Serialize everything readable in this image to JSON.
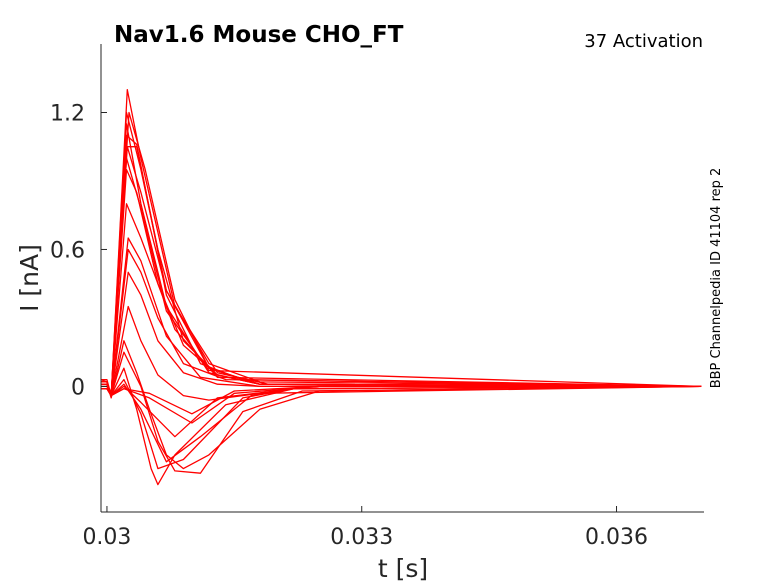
{
  "chart_data": {
    "type": "line",
    "title": "Nav1.6  Mouse  CHO_FT",
    "subtitle": "37  Activation",
    "side_note": "BBP Channelpedia ID 41104 rep 2",
    "xlabel": "t [s]",
    "ylabel": "I [nA]",
    "xlim": [
      0.02993,
      0.03703
    ],
    "ylim": [
      -0.55,
      1.5
    ],
    "x_ticks": [
      0.03,
      0.033,
      0.036
    ],
    "x_tick_labels": [
      "0.03",
      "0.033",
      "0.036"
    ],
    "y_ticks": [
      0,
      0.6,
      1.2
    ],
    "y_tick_labels": [
      "0",
      "0.6",
      "1.2"
    ],
    "grid": false,
    "line_color": "#ff0000",
    "series": [
      {
        "values": [
          [
            0.02993,
            -0.01
          ],
          [
            0.03,
            -0.01
          ],
          [
            0.03005,
            -0.04
          ],
          [
            0.0302,
            -0.01
          ],
          [
            0.0305,
            -0.03
          ],
          [
            0.031,
            -0.12
          ],
          [
            0.0315,
            -0.02
          ],
          [
            0.0325,
            0.0
          ],
          [
            0.037,
            0.0
          ]
        ]
      },
      {
        "values": [
          [
            0.02993,
            -0.01
          ],
          [
            0.03,
            -0.01
          ],
          [
            0.03005,
            -0.04
          ],
          [
            0.0302,
            -0.01
          ],
          [
            0.0305,
            -0.05
          ],
          [
            0.031,
            -0.16
          ],
          [
            0.0315,
            -0.03
          ],
          [
            0.0325,
            0.0
          ],
          [
            0.037,
            0.0
          ]
        ]
      },
      {
        "values": [
          [
            0.02993,
            -0.01
          ],
          [
            0.03,
            -0.01
          ],
          [
            0.03005,
            -0.04
          ],
          [
            0.0302,
            0.0
          ],
          [
            0.0304,
            -0.07
          ],
          [
            0.0308,
            -0.22
          ],
          [
            0.0313,
            -0.05
          ],
          [
            0.0322,
            -0.01
          ],
          [
            0.0325,
            0.0
          ],
          [
            0.037,
            0.0
          ]
        ]
      },
      {
        "values": [
          [
            0.02993,
            -0.01
          ],
          [
            0.03,
            -0.01
          ],
          [
            0.03005,
            -0.04
          ],
          [
            0.0302,
            0.01
          ],
          [
            0.0304,
            -0.1
          ],
          [
            0.0307,
            -0.33
          ],
          [
            0.0311,
            -0.22
          ],
          [
            0.0317,
            -0.04
          ],
          [
            0.0322,
            -0.01
          ],
          [
            0.037,
            0.0
          ]
        ]
      },
      {
        "values": [
          [
            0.02993,
            -0.01
          ],
          [
            0.03,
            -0.01
          ],
          [
            0.03005,
            -0.04
          ],
          [
            0.0302,
            0.03
          ],
          [
            0.0304,
            -0.12
          ],
          [
            0.0306,
            -0.36
          ],
          [
            0.0309,
            -0.32
          ],
          [
            0.0316,
            -0.05
          ],
          [
            0.0322,
            -0.01
          ],
          [
            0.037,
            0.0
          ]
        ]
      },
      {
        "values": [
          [
            0.02993,
            0.02
          ],
          [
            0.03,
            0.02
          ],
          [
            0.03005,
            -0.04
          ],
          [
            0.0302,
            0.08
          ],
          [
            0.03035,
            -0.1
          ],
          [
            0.03052,
            -0.36
          ],
          [
            0.0306,
            -0.43
          ],
          [
            0.0308,
            -0.3
          ],
          [
            0.0314,
            -0.08
          ],
          [
            0.0322,
            -0.01
          ],
          [
            0.037,
            0.0
          ]
        ]
      },
      {
        "values": [
          [
            0.02993,
            0.01
          ],
          [
            0.03,
            0.01
          ],
          [
            0.03005,
            -0.04
          ],
          [
            0.0302,
            0.15
          ],
          [
            0.0304,
            0.0
          ],
          [
            0.0306,
            -0.24
          ],
          [
            0.0308,
            -0.37
          ],
          [
            0.0311,
            -0.38
          ],
          [
            0.0316,
            -0.11
          ],
          [
            0.0323,
            -0.02
          ],
          [
            0.037,
            0.0
          ]
        ]
      },
      {
        "values": [
          [
            0.02993,
            0.01
          ],
          [
            0.03,
            0.01
          ],
          [
            0.03005,
            -0.05
          ],
          [
            0.0302,
            0.2
          ],
          [
            0.03035,
            0.06
          ],
          [
            0.0305,
            -0.1
          ],
          [
            0.0307,
            -0.3
          ],
          [
            0.0309,
            -0.36
          ],
          [
            0.0312,
            -0.3
          ],
          [
            0.0318,
            -0.1
          ],
          [
            0.0325,
            -0.02
          ],
          [
            0.037,
            0.0
          ]
        ]
      },
      {
        "values": [
          [
            0.02993,
            0.03
          ],
          [
            0.03,
            0.02
          ],
          [
            0.03005,
            -0.04
          ],
          [
            0.03025,
            0.35
          ],
          [
            0.0304,
            0.2
          ],
          [
            0.0306,
            0.05
          ],
          [
            0.0309,
            -0.04
          ],
          [
            0.0312,
            -0.06
          ],
          [
            0.0318,
            -0.03
          ],
          [
            0.037,
            0.0
          ]
        ]
      },
      {
        "values": [
          [
            0.02993,
            0.01
          ],
          [
            0.03,
            0.01
          ],
          [
            0.03005,
            -0.04
          ],
          [
            0.03025,
            0.5
          ],
          [
            0.0304,
            0.4
          ],
          [
            0.0306,
            0.2
          ],
          [
            0.0309,
            0.06
          ],
          [
            0.0313,
            0.01
          ],
          [
            0.0318,
            0.0
          ],
          [
            0.037,
            0.0
          ]
        ]
      },
      {
        "values": [
          [
            0.02993,
            0.01
          ],
          [
            0.03,
            0.01
          ],
          [
            0.03005,
            -0.04
          ],
          [
            0.03025,
            0.6
          ],
          [
            0.0304,
            0.5
          ],
          [
            0.0306,
            0.3
          ],
          [
            0.0309,
            0.1
          ],
          [
            0.0314,
            0.03
          ],
          [
            0.037,
            0.0
          ]
        ]
      },
      {
        "values": [
          [
            0.02993,
            0.02
          ],
          [
            0.03,
            0.02
          ],
          [
            0.03005,
            -0.04
          ],
          [
            0.03025,
            0.65
          ],
          [
            0.0304,
            0.55
          ],
          [
            0.0307,
            0.22
          ],
          [
            0.0311,
            0.04
          ],
          [
            0.0318,
            0.0
          ],
          [
            0.037,
            0.0
          ]
        ]
      },
      {
        "values": [
          [
            0.02993,
            0.02
          ],
          [
            0.03,
            0.02
          ],
          [
            0.03005,
            -0.04
          ],
          [
            0.03023,
            0.95
          ],
          [
            0.03035,
            0.85
          ],
          [
            0.0306,
            0.45
          ],
          [
            0.0309,
            0.18
          ],
          [
            0.0313,
            0.05
          ],
          [
            0.0318,
            0.01
          ],
          [
            0.037,
            0.0
          ]
        ]
      },
      {
        "values": [
          [
            0.02993,
            0.01
          ],
          [
            0.03,
            0.01
          ],
          [
            0.03005,
            -0.04
          ],
          [
            0.03023,
            1.05
          ],
          [
            0.03035,
            1.05
          ],
          [
            0.0306,
            0.6
          ],
          [
            0.0309,
            0.2
          ],
          [
            0.0313,
            0.05
          ],
          [
            0.0318,
            0.01
          ],
          [
            0.037,
            0.0
          ]
        ]
      },
      {
        "values": [
          [
            0.02993,
            0.01
          ],
          [
            0.03,
            0.01
          ],
          [
            0.03005,
            -0.04
          ],
          [
            0.03023,
            1.15
          ],
          [
            0.0304,
            0.8
          ],
          [
            0.0307,
            0.35
          ],
          [
            0.0312,
            0.06
          ],
          [
            0.0318,
            0.01
          ],
          [
            0.037,
            0.0
          ]
        ]
      },
      {
        "values": [
          [
            0.02993,
            0.02
          ],
          [
            0.03,
            0.02
          ],
          [
            0.03005,
            -0.04
          ],
          [
            0.03023,
            1.2
          ],
          [
            0.0304,
            0.95
          ],
          [
            0.0307,
            0.42
          ],
          [
            0.0312,
            0.08
          ],
          [
            0.0318,
            0.01
          ],
          [
            0.037,
            0.0
          ]
        ]
      },
      {
        "values": [
          [
            0.02993,
            0.03
          ],
          [
            0.03,
            0.03
          ],
          [
            0.03005,
            -0.04
          ],
          [
            0.03024,
            1.3
          ],
          [
            0.0304,
            1.0
          ],
          [
            0.0308,
            0.35
          ],
          [
            0.0313,
            0.06
          ],
          [
            0.0319,
            0.01
          ],
          [
            0.037,
            0.0
          ]
        ]
      },
      {
        "values": [
          [
            0.02993,
            0.02
          ],
          [
            0.03,
            0.02
          ],
          [
            0.03005,
            -0.04
          ],
          [
            0.03026,
            1.2
          ],
          [
            0.03045,
            0.95
          ],
          [
            0.0308,
            0.38
          ],
          [
            0.0312,
            0.08
          ],
          [
            0.0318,
            0.01
          ],
          [
            0.037,
            0.0
          ]
        ]
      },
      {
        "values": [
          [
            0.02993,
            0.01
          ],
          [
            0.03,
            0.01
          ],
          [
            0.03005,
            -0.04
          ],
          [
            0.03023,
            1.1
          ],
          [
            0.03035,
            1.06
          ],
          [
            0.0307,
            0.4
          ],
          [
            0.0311,
            0.1
          ],
          [
            0.0316,
            0.03
          ],
          [
            0.037,
            0.0
          ]
        ]
      },
      {
        "values": [
          [
            0.02993,
            0.01
          ],
          [
            0.03,
            0.01
          ],
          [
            0.03005,
            -0.04
          ],
          [
            0.03024,
            1.05
          ],
          [
            0.0304,
            0.85
          ],
          [
            0.0307,
            0.42
          ],
          [
            0.0312,
            0.1
          ],
          [
            0.0318,
            0.02
          ],
          [
            0.037,
            0.0
          ]
        ]
      },
      {
        "values": [
          [
            0.02993,
            0.0
          ],
          [
            0.03,
            0.0
          ],
          [
            0.03005,
            -0.04
          ],
          [
            0.03023,
            1.0
          ],
          [
            0.0304,
            0.78
          ],
          [
            0.0307,
            0.33
          ],
          [
            0.0312,
            0.07
          ],
          [
            0.037,
            0.0
          ]
        ]
      },
      {
        "values": [
          [
            0.02993,
            0.02
          ],
          [
            0.03,
            0.02
          ],
          [
            0.03005,
            -0.04
          ],
          [
            0.03023,
            0.8
          ],
          [
            0.0304,
            0.65
          ],
          [
            0.0308,
            0.25
          ],
          [
            0.0313,
            0.04
          ],
          [
            0.037,
            0.0
          ]
        ]
      }
    ]
  }
}
